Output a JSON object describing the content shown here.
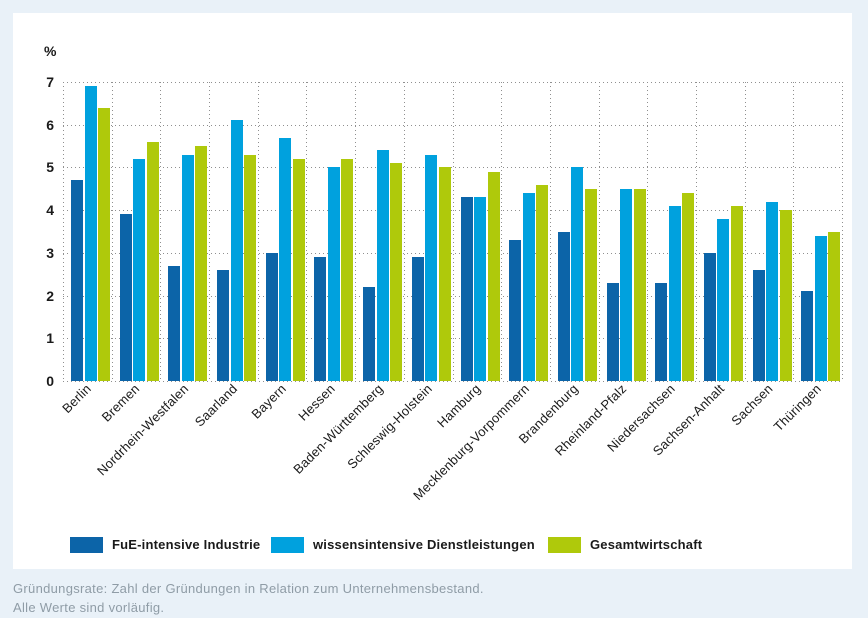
{
  "chart": {
    "footnote_line1": "Gründungsrate: Zahl der Gründungen in Relation zum Unternehmensbestand.",
    "footnote_line2": "Alle Werte sind vorläufig."
  },
  "chart_data": {
    "type": "bar",
    "title": "",
    "ylabel": "%",
    "xlabel": "",
    "ylim": [
      0,
      7
    ],
    "yticks": [
      0,
      1,
      2,
      3,
      4,
      5,
      6,
      7
    ],
    "grid": true,
    "legend_position": "bottom",
    "categories": [
      "Berlin",
      "Bremen",
      "Nordrhein-Westfalen",
      "Saarland",
      "Bayern",
      "Hessen",
      "Baden-Württemberg",
      "Schleswig-Holstein",
      "Hamburg",
      "Mecklenburg-Vorpommern",
      "Brandenburg",
      "Rheinland-Pfalz",
      "Niedersachsen",
      "Sachsen-Anhalt",
      "Sachsen",
      "Thüringen"
    ],
    "series": [
      {
        "name": "FuE-intensive Industrie",
        "color": "#0c64a8",
        "values": [
          4.7,
          3.9,
          2.7,
          2.6,
          3.0,
          2.9,
          2.2,
          2.9,
          4.3,
          3.3,
          3.5,
          2.3,
          2.3,
          3.0,
          2.6,
          2.1
        ]
      },
      {
        "name": "wissensintensive Dienstleistungen",
        "color": "#00a1de",
        "values": [
          6.9,
          5.2,
          5.3,
          6.1,
          5.7,
          5.0,
          5.4,
          5.3,
          4.3,
          4.4,
          5.0,
          4.5,
          4.1,
          3.8,
          4.2,
          3.4
        ]
      },
      {
        "name": "Gesamtwirtschaft",
        "color": "#afc90b",
        "values": [
          6.4,
          5.6,
          5.5,
          5.3,
          5.2,
          5.2,
          5.1,
          5.0,
          4.9,
          4.6,
          4.5,
          4.5,
          4.4,
          4.1,
          4.0,
          3.5
        ]
      }
    ],
    "colors": {
      "background": "#e9f1f8",
      "panel": "#ffffff",
      "gridline": "#8f8f8f",
      "text": "#1a1a1a",
      "footnote_text": "#8f9ca6"
    }
  }
}
